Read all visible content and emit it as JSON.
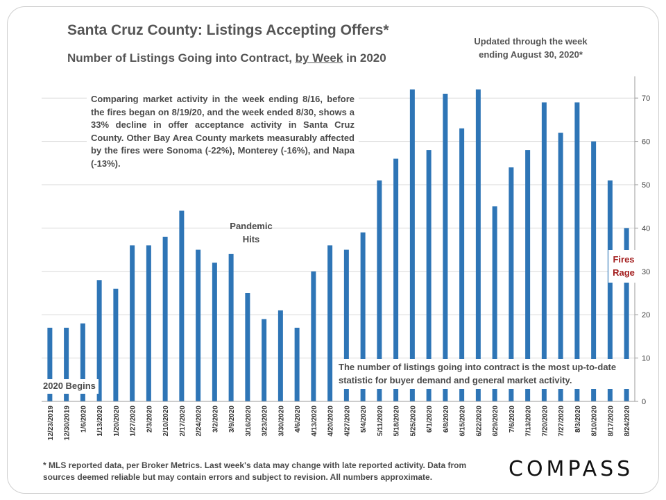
{
  "header": {
    "title": "Santa Cruz County: Listings Accepting Offers*",
    "subtitle_pre": "Number of Listings Going into Contract, ",
    "subtitle_ul": "by Week",
    "subtitle_post": " in 2020",
    "updated_line1": "Updated through the week",
    "updated_line2": "ending August 30, 2020*"
  },
  "annotations": {
    "main": "Comparing market activity in the week ending 8/16, before the fires began on 8/19/20, and the week ended 8/30, shows a 33% decline in offer acceptance activity in Santa Cruz County. Other Bay Area County markets measurably affected by the fires were Sonoma (-22%), Monterey (-16%), and Napa (-13%).",
    "pandemic_line1": "Pandemic",
    "pandemic_line2": "Hits",
    "begins": "2020 Begins",
    "fires_line1": "Fires",
    "fires_line2": "Rage",
    "bottom": "The number of listings going into contract is the most up-to-date statistic for buyer demand and general market activity."
  },
  "footnote": "* MLS reported data, per Broker Metrics. Last week's data may change with late reported activity. Data from sources deemed reliable but may contain errors and subject to revision. All numbers approximate.",
  "logo": "COMPASS",
  "colors": {
    "bar": "#2e75b6",
    "grid": "#d9d9d9",
    "fires": "#a31d1d"
  },
  "chart_data": {
    "type": "bar",
    "categories": [
      "12/23/2019",
      "12/30/2019",
      "1/6/2020",
      "1/13/2020",
      "1/20/2020",
      "1/27/2020",
      "2/3/2020",
      "2/10/2020",
      "2/17/2020",
      "2/24/2020",
      "3/2/2020",
      "3/9/2020",
      "3/16/2020",
      "3/23/2020",
      "3/30/2020",
      "4/6/2020",
      "4/13/2020",
      "4/20/2020",
      "4/27/2020",
      "5/4/2020",
      "5/11/2020",
      "5/18/2020",
      "5/25/2020",
      "6/1/2020",
      "6/8/2020",
      "6/15/2020",
      "6/22/2020",
      "6/29/2020",
      "7/6/2020",
      "7/13/2020",
      "7/20/2020",
      "7/27/2020",
      "8/3/2020",
      "8/10/2020",
      "8/17/2020",
      "8/24/2020"
    ],
    "values": [
      17,
      17,
      18,
      28,
      26,
      36,
      36,
      38,
      44,
      35,
      32,
      34,
      25,
      19,
      21,
      17,
      30,
      36,
      35,
      39,
      51,
      56,
      72,
      58,
      71,
      63,
      72,
      45,
      54,
      58,
      69,
      62,
      69,
      60,
      51,
      40
    ],
    "ylim": [
      0,
      75
    ],
    "yticks": [
      0,
      10,
      20,
      30,
      40,
      50,
      60,
      70
    ],
    "y_axis_side": "right",
    "grid": true
  }
}
